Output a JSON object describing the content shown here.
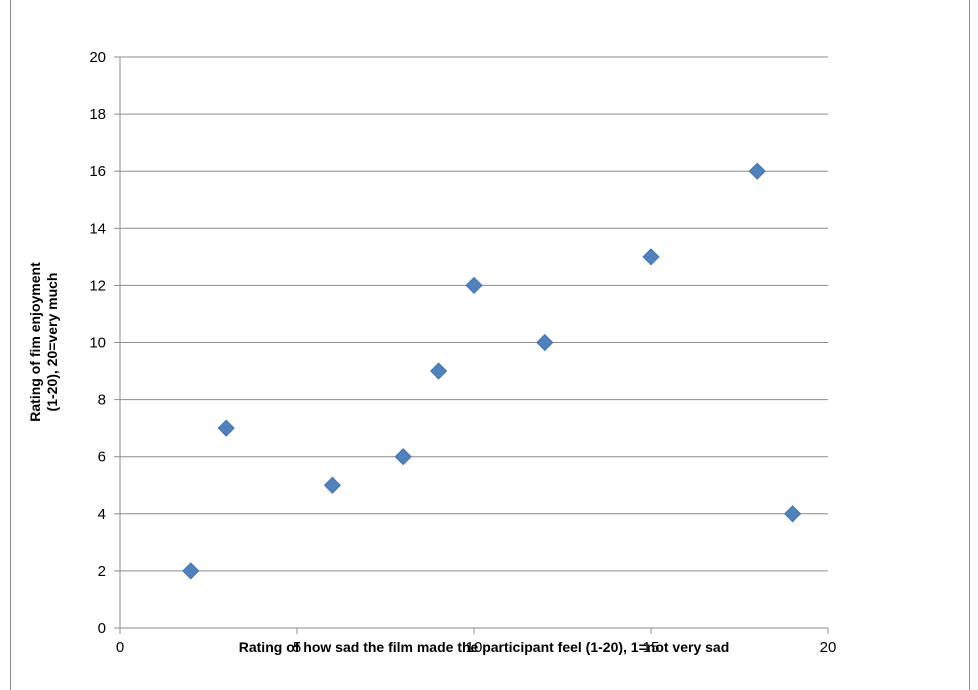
{
  "chart_data": {
    "type": "scatter",
    "title": "",
    "xlabel": "Rating of how sad the film made the participant  feel (1-20), 1=not very sad",
    "ylabel_lines": [
      "Rating of fim enjoyment",
      "(1-20), 20=very much"
    ],
    "xlim": [
      0,
      20
    ],
    "ylim": [
      0,
      20
    ],
    "x_ticks": [
      0,
      5,
      10,
      15,
      20
    ],
    "y_ticks": [
      0,
      2,
      4,
      6,
      8,
      10,
      12,
      14,
      16,
      18,
      20
    ],
    "grid": "horizontal",
    "marker": "diamond",
    "series": [
      {
        "color": "#4f81bd",
        "points": [
          {
            "x": 2,
            "y": 2
          },
          {
            "x": 3,
            "y": 7
          },
          {
            "x": 6,
            "y": 5
          },
          {
            "x": 8,
            "y": 6
          },
          {
            "x": 9,
            "y": 9
          },
          {
            "x": 10,
            "y": 12
          },
          {
            "x": 12,
            "y": 10
          },
          {
            "x": 15,
            "y": 13
          },
          {
            "x": 18,
            "y": 16
          },
          {
            "x": 19,
            "y": 4
          }
        ]
      }
    ]
  }
}
